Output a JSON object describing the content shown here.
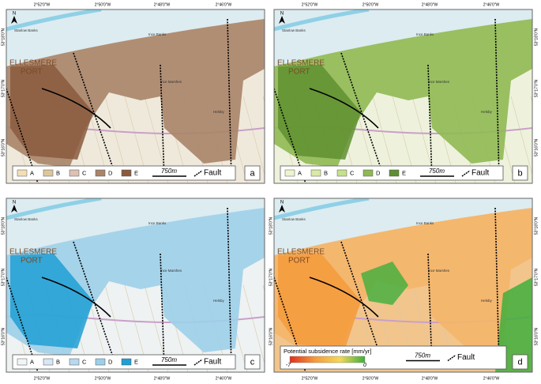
{
  "map": {
    "lon_labels": [
      "2°52'0\"W",
      "2°50'0\"W",
      "2°48'0\"W",
      "2°46'0\"W"
    ],
    "lat_labels": [
      "53°18'0\"N",
      "53°17'0\"N",
      "53°16'0\"N"
    ],
    "town": [
      "ELLESMERE",
      "PORT"
    ],
    "places": [
      "Stanlow Banks",
      "Ince Banks",
      "Ince Marshes",
      "Helsby"
    ],
    "north": "N",
    "scale": "750m",
    "fault": "Fault",
    "legend_classes": [
      "A",
      "B",
      "C",
      "D",
      "E"
    ],
    "panels": [
      {
        "letter": "a",
        "base": "#efe9dc",
        "colors": [
          "#f2dfb6",
          "#dcc79c",
          "#dcc2b4",
          "#a98468",
          "#8a5a3e"
        ]
      },
      {
        "letter": "b",
        "base": "#eef2dc",
        "colors": [
          "#eef4cf",
          "#d8eaa4",
          "#c6e18a",
          "#8fb953",
          "#5f8f30"
        ]
      },
      {
        "letter": "c",
        "base": "#eef2f2",
        "colors": [
          "#f1f5f8",
          "#d7e7f3",
          "#b6d9ee",
          "#9ccfe9",
          "#1f9fd4"
        ]
      },
      {
        "letter": "d",
        "base": "#f2c58c",
        "colors": [
          "#e0301e",
          "#f59b3c",
          "#f3d95a",
          "#3fae3c"
        ],
        "colorbar": {
          "title": "Potential subsidence rate [mm/yr]",
          "min": -7,
          "max": 0
        }
      }
    ]
  }
}
